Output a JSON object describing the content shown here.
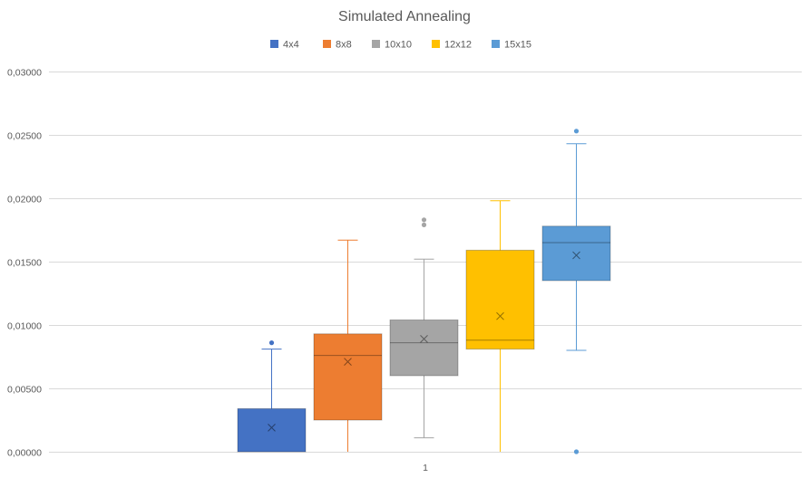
{
  "chart_data": {
    "type": "box",
    "title": "Simulated Annealing",
    "categories": [
      "1"
    ],
    "legend_position": "top",
    "grid": true,
    "ylim": [
      0,
      0.03
    ],
    "y_ticks": [
      "0,00000",
      "0,00500",
      "0,01000",
      "0,01500",
      "0,02000",
      "0,02500",
      "0,03000"
    ],
    "y_tick_values": [
      0,
      0.005,
      0.01,
      0.015,
      0.02,
      0.025,
      0.03
    ],
    "series": [
      {
        "name": "4x4",
        "color": "#4472C4",
        "whisker_low": 0,
        "q1": 0,
        "median": 0,
        "q3": 0.0034,
        "whisker_high": 0.0081,
        "mean": 0.0019,
        "outliers": [
          0.0086
        ]
      },
      {
        "name": "8x8",
        "color": "#ED7D31",
        "whisker_low": 0,
        "q1": 0.0025,
        "median": 0.0076,
        "q3": 0.0093,
        "whisker_high": 0.0167,
        "mean": 0.0071,
        "outliers": []
      },
      {
        "name": "10x10",
        "color": "#A5A5A5",
        "whisker_low": 0.0011,
        "q1": 0.006,
        "median": 0.0086,
        "q3": 0.0104,
        "whisker_high": 0.0152,
        "mean": 0.0089,
        "outliers": [
          0.0179,
          0.0183
        ]
      },
      {
        "name": "12x12",
        "color": "#FFC000",
        "whisker_low": 0,
        "q1": 0.0081,
        "median": 0.0088,
        "q3": 0.0159,
        "whisker_high": 0.0198,
        "mean": 0.0107,
        "outliers": []
      },
      {
        "name": "15x15",
        "color": "#5B9BD5",
        "whisker_low": 0.008,
        "q1": 0.0135,
        "median": 0.0165,
        "q3": 0.0178,
        "whisker_high": 0.0243,
        "mean": 0.0155,
        "outliers": [
          0,
          0.0253
        ]
      }
    ]
  }
}
